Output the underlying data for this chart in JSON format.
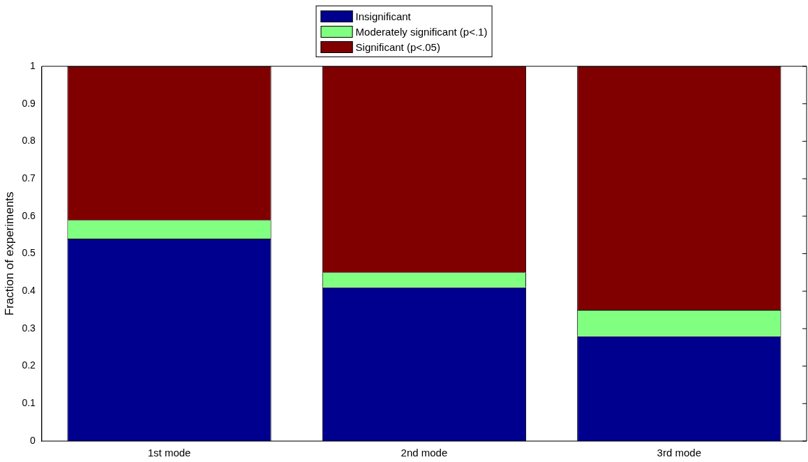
{
  "chart_data": {
    "type": "bar",
    "stacked": true,
    "ylabel": "Fraction of experiments",
    "categories": [
      "1st mode",
      "2nd mode",
      "3rd mode"
    ],
    "series": [
      {
        "name": "Insignificant",
        "color": "#00008f",
        "values": [
          0.54,
          0.41,
          0.28
        ]
      },
      {
        "name": "Moderately significant (p<.1)",
        "color": "#80ff80",
        "values": [
          0.05,
          0.04,
          0.07
        ]
      },
      {
        "name": "Significant (p<.05)",
        "color": "#800000",
        "values": [
          0.41,
          0.55,
          0.65
        ]
      }
    ],
    "ylim": [
      0,
      1
    ],
    "yticks": [
      0,
      0.1,
      0.2,
      0.3,
      0.4,
      0.5,
      0.6,
      0.7,
      0.8,
      0.9,
      1
    ],
    "grid": false,
    "legend": "top"
  }
}
